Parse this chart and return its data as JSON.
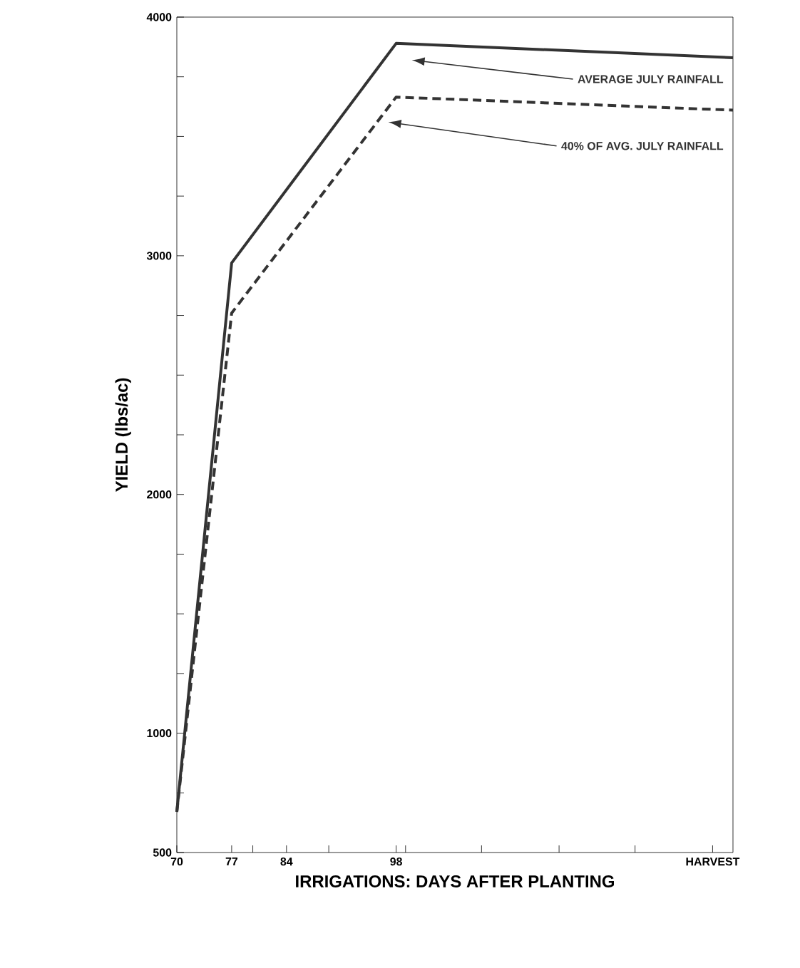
{
  "chart_data": {
    "type": "line",
    "xlabel": "IRRIGATIONS: DAYS AFTER PLANTING",
    "ylabel": "YIELD (lbs/ac)",
    "x": [
      70,
      77,
      98,
      141
    ],
    "series": [
      {
        "name": "AVERAGE JULY RAINFALL",
        "color": "#333333",
        "line_style": "solid",
        "values": [
          670,
          2970,
          3890,
          3830
        ]
      },
      {
        "name": "40% OF AVG. JULY RAINFALL",
        "color": "#333333",
        "line_style": "dashed",
        "values": [
          670,
          2760,
          3665,
          3610
        ]
      }
    ],
    "xlim": [
      70,
      141
    ],
    "ylim": [
      500,
      4000
    ],
    "xticks": [
      70,
      77,
      84,
      98,
      {
        "value": 138.4,
        "label": "HARVEST"
      },
      {
        "value": 79.7,
        "label": null
      },
      {
        "value": 89.4,
        "label": null
      },
      {
        "value": 99.2,
        "label": null
      },
      {
        "value": 108.9,
        "label": null
      },
      {
        "value": 118.8,
        "label": null
      },
      {
        "value": 128.5,
        "label": null
      }
    ],
    "yticks": [
      500,
      1000,
      2000,
      3000,
      4000,
      {
        "value": 750,
        "label": null
      },
      {
        "value": 1250,
        "label": null
      },
      {
        "value": 1500,
        "label": null
      },
      {
        "value": 1750,
        "label": null
      },
      {
        "value": 2250,
        "label": null
      },
      {
        "value": 2500,
        "label": null
      },
      {
        "value": 2750,
        "label": null
      },
      {
        "value": 3250,
        "label": null
      },
      {
        "value": 3500,
        "label": null
      },
      {
        "value": 3750,
        "label": null
      }
    ],
    "grid": false,
    "legend": false,
    "marker": "none"
  }
}
